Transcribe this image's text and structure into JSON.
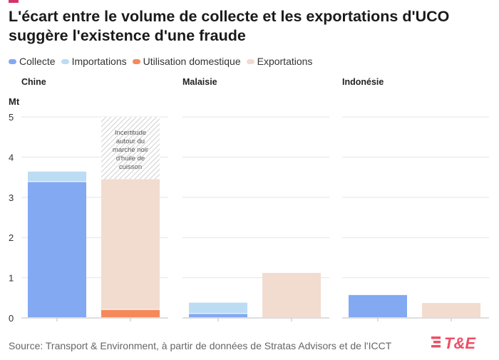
{
  "header": {
    "title": "L'écart entre le volume de collecte et les exportations d'UCO suggère l'existence d'une fraude"
  },
  "colors": {
    "collecte": "#82a9f2",
    "importations": "#bcdcf4",
    "utilisation": "#f5895a",
    "exportations": "#f2dccf",
    "grid": "#e6e6e6",
    "axis": "#bdbdbd"
  },
  "legend": [
    {
      "key": "collecte",
      "label": "Collecte"
    },
    {
      "key": "importations",
      "label": "Importations"
    },
    {
      "key": "utilisation",
      "label": "Utilisation domestique"
    },
    {
      "key": "exportations",
      "label": "Exportations"
    }
  ],
  "annotation": {
    "text": "Incertitude autour du marché noir d'huile de cuisson"
  },
  "source": "Source: Transport & Environment, à partir de données de Stratas Advisors et de l'ICCT",
  "logo": {
    "text": "T&E"
  },
  "chart_data": {
    "type": "bar",
    "stacked": true,
    "ylabel": "Mt",
    "ylim": [
      0,
      5
    ],
    "yticks": [
      0,
      1,
      2,
      3,
      4,
      5
    ],
    "grid": true,
    "legend_position": "top-left",
    "panels": [
      {
        "title": "Chine",
        "bars": [
          {
            "segments": [
              {
                "key": "collecte",
                "value": 3.38
              },
              {
                "key": "importations",
                "value": 0.26
              }
            ]
          },
          {
            "segments": [
              {
                "key": "utilisation",
                "value": 0.2
              },
              {
                "key": "exportations",
                "value": 3.25
              }
            ],
            "uncertainty_to": 5
          }
        ]
      },
      {
        "title": "Malaisie",
        "bars": [
          {
            "segments": [
              {
                "key": "collecte",
                "value": 0.1
              },
              {
                "key": "importations",
                "value": 0.28
              }
            ]
          },
          {
            "segments": [
              {
                "key": "exportations",
                "value": 1.12
              }
            ]
          }
        ]
      },
      {
        "title": "Indonésie",
        "bars": [
          {
            "segments": [
              {
                "key": "collecte",
                "value": 0.57
              }
            ]
          },
          {
            "segments": [
              {
                "key": "exportations",
                "value": 0.37
              }
            ]
          }
        ]
      }
    ]
  }
}
